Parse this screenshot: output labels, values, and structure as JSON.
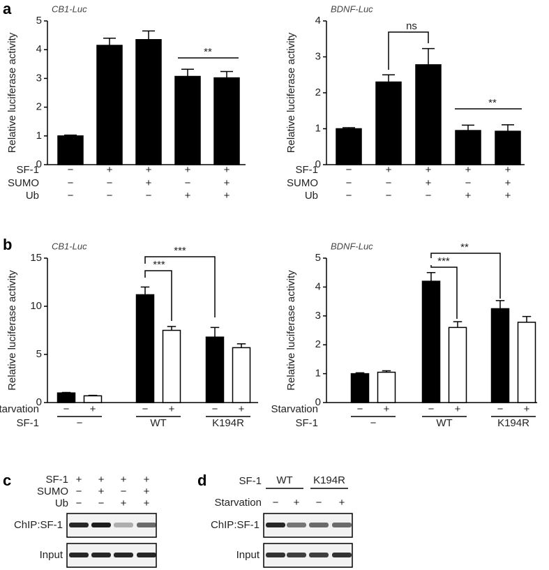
{
  "panel_labels": [
    "a",
    "b"
  ],
  "chart_data": [
    {
      "type": "bar",
      "title": "CB1-Luc",
      "y_label": "Relative luciferase activity",
      "ylim": [
        0,
        5
      ],
      "yticks": [
        0,
        1,
        2,
        3,
        4,
        5
      ],
      "color": "#000000",
      "values": [
        1.0,
        4.15,
        4.35,
        3.07,
        3.02
      ],
      "errors": [
        0.03,
        0.25,
        0.3,
        0.25,
        0.22
      ],
      "conditions": [
        {
          "label": "SF-1",
          "values": [
            "−",
            "+",
            "+",
            "+",
            "+"
          ]
        },
        {
          "label": "SUMO",
          "values": [
            "−",
            "−",
            "+",
            "−",
            "+"
          ]
        },
        {
          "label": "Ub",
          "values": [
            "−",
            "−",
            "−",
            "+",
            "+"
          ]
        }
      ],
      "annotations": [
        "**"
      ]
    },
    {
      "type": "bar",
      "title": "BDNF-Luc",
      "y_label": "Relative luciferase activity",
      "ylim": [
        0,
        4
      ],
      "yticks": [
        0,
        1,
        2,
        3,
        4
      ],
      "color": "#000000",
      "values": [
        1.0,
        2.3,
        2.78,
        0.95,
        0.93
      ],
      "errors": [
        0.03,
        0.2,
        0.45,
        0.15,
        0.18
      ],
      "conditions": [
        {
          "label": "SF-1",
          "values": [
            "−",
            "+",
            "+",
            "+",
            "+"
          ]
        },
        {
          "label": "SUMO",
          "values": [
            "−",
            "−",
            "+",
            "−",
            "+"
          ]
        },
        {
          "label": "Ub",
          "values": [
            "−",
            "−",
            "−",
            "+",
            "+"
          ]
        }
      ],
      "annotations": [
        "ns",
        "**"
      ]
    },
    {
      "type": "grouped-bar",
      "title": "CB1-Luc",
      "y_label": "Relative luciferase activity",
      "ylim": [
        0,
        15
      ],
      "yticks": [
        0,
        5,
        10,
        15
      ],
      "categories": [
        "−",
        "WT",
        "K194R"
      ],
      "row_labels": [
        "Starvation",
        "SF-1"
      ],
      "series": [
        {
          "label": "−",
          "color": "#000000",
          "values": [
            1.0,
            11.2,
            6.8
          ],
          "errors": [
            0.05,
            0.8,
            1.0
          ]
        },
        {
          "label": "+",
          "color": "#ffffff",
          "values": [
            0.7,
            7.5,
            5.7
          ],
          "errors": [
            0.05,
            0.4,
            0.4
          ]
        }
      ],
      "annotations": [
        "***",
        "***"
      ]
    },
    {
      "type": "grouped-bar",
      "title": "BDNF-Luc",
      "y_label": "Relative luciferase activity",
      "ylim": [
        0,
        5
      ],
      "yticks": [
        0,
        1,
        2,
        3,
        4,
        5
      ],
      "categories": [
        "−",
        "WT",
        "K194R"
      ],
      "row_labels": [
        "Starvation",
        "SF-1"
      ],
      "series": [
        {
          "label": "−",
          "color": "#000000",
          "values": [
            1.0,
            4.2,
            3.25
          ],
          "errors": [
            0.03,
            0.3,
            0.28
          ]
        },
        {
          "label": "+",
          "color": "#ffffff",
          "values": [
            1.05,
            2.6,
            2.78
          ],
          "errors": [
            0.05,
            0.2,
            0.2
          ]
        }
      ],
      "annotations": [
        "***",
        "**"
      ]
    }
  ],
  "blots": [
    {
      "label": "c",
      "conditions": [
        {
          "label": "SF-1",
          "values": [
            "+",
            "+",
            "+",
            "+"
          ]
        },
        {
          "label": "SUMO",
          "values": [
            "−",
            "+",
            "−",
            "+"
          ]
        },
        {
          "label": "Ub",
          "values": [
            "−",
            "−",
            "+",
            "+"
          ]
        }
      ],
      "lanes": [
        "ChIP:SF-1",
        "Input"
      ]
    },
    {
      "label": "d",
      "groups_label": "SF-1",
      "groups": [
        "WT",
        "K194R"
      ],
      "condition": {
        "label": "Starvation",
        "values": [
          "−",
          "+",
          "−",
          "+"
        ]
      },
      "lanes": [
        "ChIP:SF-1",
        "Input"
      ]
    }
  ]
}
